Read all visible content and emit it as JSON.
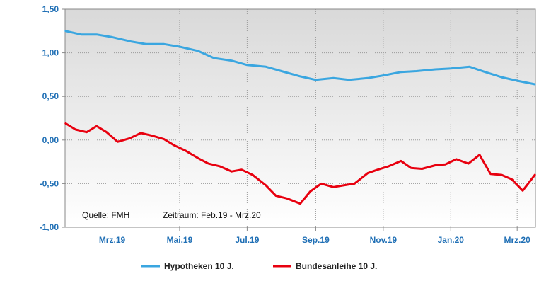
{
  "chart_data": {
    "type": "line",
    "x_ticks": [
      "Mrz.19",
      "Mai.19",
      "Jul.19",
      "Sep.19",
      "Nov.19",
      "Jan.20",
      "Mrz.20"
    ],
    "y_ticks": [
      "1,50",
      "1,00",
      "0,50",
      "0,00",
      "-0,50",
      "-1,00"
    ],
    "ylim": [
      -1.0,
      1.5
    ],
    "xlim": [
      "2019-02-01",
      "2020-03-31"
    ],
    "grid": true,
    "legend_position": "bottom",
    "annotations": {
      "source": "Quelle: FMH",
      "period": "Zeitraum: Feb.19 - Mrz.20"
    },
    "colors": {
      "Hypotheken 10 J.": "#3aa6e0",
      "Bundesanleihe 10 J.": "#e8000f",
      "axis_text": "#1f6fb5",
      "plot_background_top": "#d9d9d9",
      "plot_background_bottom": "#ffffff"
    },
    "series": [
      {
        "name": "Hypotheken 10 J.",
        "x": [
          "2019-02-01",
          "2019-02-15",
          "2019-03-01",
          "2019-03-15",
          "2019-04-01",
          "2019-04-15",
          "2019-05-01",
          "2019-05-15",
          "2019-06-01",
          "2019-06-15",
          "2019-07-01",
          "2019-07-15",
          "2019-08-01",
          "2019-08-15",
          "2019-09-01",
          "2019-09-15",
          "2019-10-01",
          "2019-10-15",
          "2019-11-01",
          "2019-11-15",
          "2019-12-01",
          "2019-12-15",
          "2020-01-01",
          "2020-01-15",
          "2020-02-01",
          "2020-02-15",
          "2020-03-01",
          "2020-03-15",
          "2020-03-31"
        ],
        "values": [
          1.25,
          1.21,
          1.21,
          1.18,
          1.13,
          1.1,
          1.1,
          1.07,
          1.02,
          0.94,
          0.91,
          0.86,
          0.84,
          0.79,
          0.73,
          0.69,
          0.71,
          0.69,
          0.71,
          0.74,
          0.78,
          0.79,
          0.81,
          0.82,
          0.84,
          0.78,
          0.72,
          0.68,
          0.64
        ]
      },
      {
        "name": "Bundesanleihe 10 J.",
        "x": [
          "2019-02-01",
          "2019-02-10",
          "2019-02-20",
          "2019-03-01",
          "2019-03-10",
          "2019-03-20",
          "2019-03-31",
          "2019-04-10",
          "2019-04-20",
          "2019-05-01",
          "2019-05-10",
          "2019-05-20",
          "2019-06-01",
          "2019-06-10",
          "2019-06-20",
          "2019-07-01",
          "2019-07-10",
          "2019-07-20",
          "2019-08-01",
          "2019-08-10",
          "2019-08-20",
          "2019-09-01",
          "2019-09-10",
          "2019-09-20",
          "2019-10-01",
          "2019-10-10",
          "2019-10-20",
          "2019-11-01",
          "2019-11-10",
          "2019-11-20",
          "2019-12-01",
          "2019-12-10",
          "2019-12-20",
          "2020-01-01",
          "2020-01-10",
          "2020-01-20",
          "2020-01-31",
          "2020-02-10",
          "2020-02-20",
          "2020-03-01",
          "2020-03-10",
          "2020-03-20",
          "2020-03-31"
        ],
        "values": [
          0.19,
          0.12,
          0.09,
          0.16,
          0.09,
          -0.02,
          0.02,
          0.08,
          0.05,
          0.01,
          -0.06,
          -0.12,
          -0.21,
          -0.27,
          -0.3,
          -0.36,
          -0.34,
          -0.4,
          -0.52,
          -0.64,
          -0.67,
          -0.73,
          -0.59,
          -0.5,
          -0.54,
          -0.52,
          -0.5,
          -0.38,
          -0.34,
          -0.3,
          -0.24,
          -0.32,
          -0.33,
          -0.29,
          -0.28,
          -0.22,
          -0.27,
          -0.17,
          -0.39,
          -0.4,
          -0.45,
          -0.58,
          -0.4
        ]
      }
    ]
  }
}
